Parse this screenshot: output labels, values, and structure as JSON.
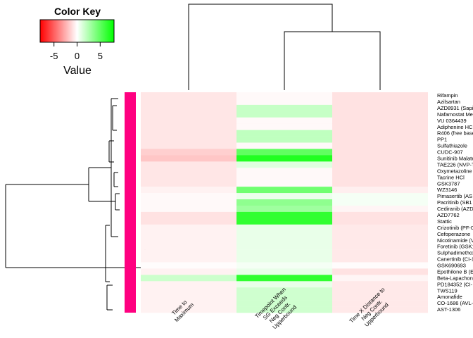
{
  "chart_data": {
    "type": "heatmap",
    "color_key": {
      "title": "Color Key",
      "xlabel": "Value",
      "ticks": [
        "-5",
        "0",
        "5"
      ],
      "tick_values": [
        -5,
        0,
        5
      ],
      "range": [
        -8,
        8
      ],
      "low_color": "#ff0000",
      "mid_color": "#ffffff",
      "high_color": "#00ff00"
    },
    "columns": [
      [
        "Time to",
        "Maximum"
      ],
      [
        "Timepoint When",
        "SG Exceeds",
        "Neg Contr.",
        "Upperbound"
      ],
      [
        "Time X Distance to",
        "Neg Contr.",
        "Upperbound"
      ]
    ],
    "rows": [
      {
        "label": "Rifampin",
        "values": [
          -0.8,
          -0.2,
          -0.9
        ]
      },
      {
        "label": "Azilsartan",
        "values": [
          -0.8,
          -0.2,
          -0.9
        ]
      },
      {
        "label": "AZD8931 (Sapi",
        "values": [
          -0.8,
          1.8,
          -0.9
        ]
      },
      {
        "label": "Nafamostat Me",
        "values": [
          -0.8,
          1.8,
          -0.9
        ]
      },
      {
        "label": "VU 0364439",
        "values": [
          -0.8,
          -0.2,
          -0.9
        ]
      },
      {
        "label": "Adiphenine HCl",
        "values": [
          -0.8,
          -0.2,
          -0.9
        ]
      },
      {
        "label": "R406 (free base",
        "values": [
          -0.8,
          2.0,
          -0.9
        ]
      },
      {
        "label": "PP1",
        "values": [
          -0.8,
          2.0,
          -0.9
        ]
      },
      {
        "label": "Sulfathiazole",
        "values": [
          -0.8,
          -0.2,
          -0.9
        ]
      },
      {
        "label": "CUDC-907",
        "values": [
          -1.5,
          5.0,
          -0.9
        ]
      },
      {
        "label": "Sunitinib Malate",
        "values": [
          -1.8,
          7.0,
          -0.9
        ]
      },
      {
        "label": "TAE226 (NVP-T",
        "values": [
          -0.8,
          1.0,
          -0.9
        ]
      },
      {
        "label": "Oxymetazoline",
        "values": [
          -0.8,
          -0.2,
          -0.9
        ]
      },
      {
        "label": "Tacrine HCl",
        "values": [
          -0.8,
          -0.2,
          -0.9
        ]
      },
      {
        "label": "GSK3787",
        "values": [
          -0.8,
          -0.2,
          -0.9
        ]
      },
      {
        "label": "WZ3146",
        "values": [
          -0.4,
          4.5,
          -0.5
        ]
      },
      {
        "label": "Pimasertib (AS",
        "values": [
          -0.2,
          0.6,
          0.3
        ]
      },
      {
        "label": "Pacritinib (SB1",
        "values": [
          -0.2,
          3.5,
          0.3
        ]
      },
      {
        "label": "Cediranib (AZD",
        "values": [
          -0.2,
          3.0,
          -0.3
        ]
      },
      {
        "label": "AZD7762",
        "values": [
          -0.9,
          6.5,
          -0.9
        ]
      },
      {
        "label": "Stattic",
        "values": [
          -0.9,
          6.5,
          -0.9
        ]
      },
      {
        "label": "Crizotinib (PF-0",
        "values": [
          -0.4,
          0.7,
          -0.7
        ]
      },
      {
        "label": "Cefoperazone",
        "values": [
          -0.4,
          0.7,
          -0.7
        ]
      },
      {
        "label": "Nicotinamide (V",
        "values": [
          -0.4,
          0.7,
          -0.7
        ]
      },
      {
        "label": "Foretinib (GSK1",
        "values": [
          -0.4,
          0.7,
          -0.7
        ]
      },
      {
        "label": "Sulphadimethox",
        "values": [
          -0.4,
          0.7,
          -0.7
        ]
      },
      {
        "label": "Canertinib (CI-1",
        "values": [
          -0.4,
          0.7,
          -0.7
        ]
      },
      {
        "label": "GSK690693",
        "values": [
          -0.1,
          0.3,
          -0.1
        ]
      },
      {
        "label": "Epothilone B (E",
        "values": [
          -0.4,
          0.7,
          -0.9
        ]
      },
      {
        "label": "Beta-Lapachone",
        "values": [
          1.6,
          6.5,
          -0.3
        ]
      },
      {
        "label": "PD184352 (CI-",
        "values": [
          -0.4,
          0.7,
          -0.7
        ]
      },
      {
        "label": "TWS119",
        "values": [
          -0.4,
          1.5,
          -0.7
        ]
      },
      {
        "label": "Amonafide",
        "values": [
          -0.4,
          1.5,
          -0.7
        ]
      },
      {
        "label": "CO-1686 (AVL-",
        "values": [
          -0.4,
          1.5,
          -0.7
        ]
      },
      {
        "label": "AST-1306",
        "values": [
          -0.4,
          1.5,
          -0.7
        ]
      }
    ],
    "row_side_color": "#ff0080",
    "legend": "top-left"
  }
}
